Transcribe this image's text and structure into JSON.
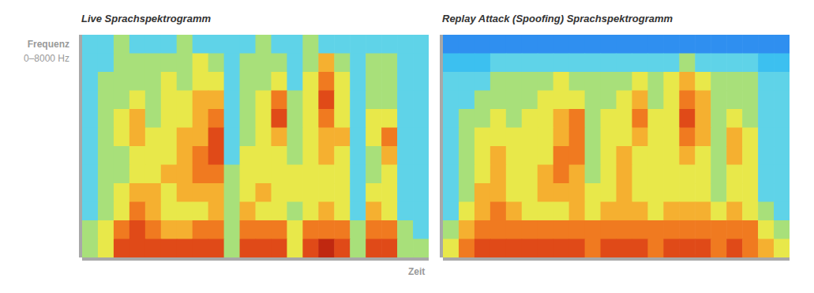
{
  "chart_data": [
    {
      "type": "heatmap",
      "title": "Live Sprachspektrogramm",
      "y_label": "Frequenz",
      "y_range_label": "0–8000 Hz",
      "x_label": "Zeit",
      "ylim": [
        0,
        8000
      ],
      "tick_labels": false,
      "color_range": [
        0,
        9
      ],
      "cells": [
        [
          3,
          3,
          4,
          3,
          3,
          3,
          4,
          3,
          3,
          3,
          3,
          4,
          3,
          3,
          4,
          3,
          3,
          3,
          3,
          3,
          3,
          3
        ],
        [
          3,
          3,
          4,
          4,
          4,
          4,
          4,
          5,
          4,
          3,
          4,
          4,
          4,
          3,
          4,
          6,
          4,
          3,
          4,
          4,
          3,
          3
        ],
        [
          3,
          4,
          4,
          4,
          4,
          5,
          4,
          5,
          5,
          3,
          4,
          4,
          5,
          3,
          5,
          7,
          5,
          3,
          4,
          4,
          3,
          3
        ],
        [
          3,
          4,
          4,
          5,
          4,
          5,
          5,
          6,
          6,
          3,
          4,
          5,
          7,
          4,
          5,
          8,
          5,
          3,
          4,
          4,
          3,
          3
        ],
        [
          3,
          4,
          5,
          6,
          4,
          5,
          5,
          6,
          7,
          3,
          4,
          5,
          8,
          4,
          5,
          7,
          5,
          3,
          5,
          5,
          3,
          3
        ],
        [
          3,
          4,
          5,
          6,
          5,
          5,
          6,
          6,
          8,
          3,
          4,
          5,
          6,
          4,
          5,
          6,
          6,
          3,
          5,
          7,
          3,
          3
        ],
        [
          3,
          4,
          4,
          5,
          5,
          5,
          6,
          7,
          8,
          3,
          5,
          5,
          5,
          4,
          5,
          6,
          5,
          3,
          4,
          6,
          3,
          3
        ],
        [
          3,
          4,
          4,
          5,
          5,
          6,
          6,
          7,
          7,
          4,
          5,
          5,
          5,
          5,
          5,
          5,
          5,
          3,
          4,
          5,
          3,
          3
        ],
        [
          3,
          4,
          5,
          6,
          6,
          5,
          6,
          6,
          6,
          4,
          5,
          6,
          5,
          5,
          5,
          5,
          5,
          3,
          5,
          5,
          3,
          3
        ],
        [
          3,
          4,
          5,
          7,
          6,
          5,
          5,
          5,
          6,
          4,
          6,
          5,
          5,
          4,
          5,
          6,
          5,
          3,
          6,
          5,
          3,
          3
        ],
        [
          4,
          5,
          7,
          8,
          7,
          6,
          6,
          7,
          7,
          4,
          7,
          7,
          7,
          5,
          7,
          7,
          7,
          4,
          7,
          7,
          4,
          3
        ],
        [
          4,
          5,
          8,
          8,
          8,
          8,
          8,
          8,
          8,
          4,
          8,
          8,
          8,
          5,
          8,
          9,
          8,
          4,
          8,
          8,
          4,
          4
        ]
      ]
    },
    {
      "type": "heatmap",
      "title": "Replay Attack (Spoofing) Sprachspektrogramm",
      "ylim": [
        0,
        8000
      ],
      "tick_labels": false,
      "color_range": [
        0,
        9
      ],
      "cells": [
        [
          1,
          1,
          1,
          1,
          1,
          1,
          1,
          1,
          1,
          1,
          1,
          1,
          1,
          1,
          1,
          1,
          1,
          1,
          1,
          1,
          1,
          1
        ],
        [
          2,
          2,
          2,
          3,
          3,
          3,
          3,
          3,
          3,
          3,
          3,
          3,
          3,
          3,
          3,
          4,
          3,
          3,
          3,
          3,
          2,
          2
        ],
        [
          3,
          3,
          3,
          4,
          4,
          4,
          4,
          5,
          4,
          4,
          4,
          4,
          5,
          4,
          5,
          6,
          5,
          4,
          4,
          4,
          3,
          3
        ],
        [
          3,
          3,
          4,
          4,
          4,
          4,
          5,
          5,
          5,
          4,
          4,
          5,
          6,
          4,
          5,
          7,
          6,
          4,
          4,
          4,
          3,
          3
        ],
        [
          3,
          4,
          4,
          5,
          4,
          5,
          5,
          6,
          7,
          4,
          5,
          5,
          7,
          5,
          5,
          8,
          6,
          4,
          5,
          4,
          3,
          3
        ],
        [
          3,
          4,
          5,
          5,
          5,
          5,
          5,
          6,
          7,
          4,
          5,
          5,
          6,
          5,
          5,
          7,
          6,
          4,
          6,
          5,
          3,
          3
        ],
        [
          3,
          4,
          5,
          6,
          5,
          5,
          5,
          7,
          7,
          4,
          5,
          6,
          5,
          5,
          5,
          6,
          5,
          4,
          6,
          5,
          3,
          3
        ],
        [
          3,
          4,
          5,
          6,
          5,
          5,
          6,
          7,
          6,
          4,
          5,
          6,
          5,
          5,
          5,
          5,
          5,
          4,
          5,
          5,
          3,
          3
        ],
        [
          3,
          4,
          6,
          6,
          5,
          5,
          6,
          6,
          6,
          5,
          5,
          6,
          5,
          5,
          5,
          5,
          5,
          4,
          5,
          5,
          3,
          3
        ],
        [
          3,
          5,
          6,
          7,
          6,
          5,
          5,
          5,
          6,
          5,
          6,
          6,
          6,
          5,
          6,
          6,
          6,
          5,
          6,
          5,
          4,
          3
        ],
        [
          4,
          6,
          7,
          7,
          7,
          7,
          7,
          7,
          7,
          7,
          7,
          7,
          7,
          7,
          7,
          7,
          7,
          7,
          7,
          7,
          5,
          4
        ],
        [
          5,
          7,
          8,
          8,
          8,
          8,
          8,
          8,
          8,
          7,
          8,
          8,
          8,
          7,
          8,
          8,
          8,
          7,
          8,
          7,
          6,
          5
        ]
      ]
    }
  ]
}
